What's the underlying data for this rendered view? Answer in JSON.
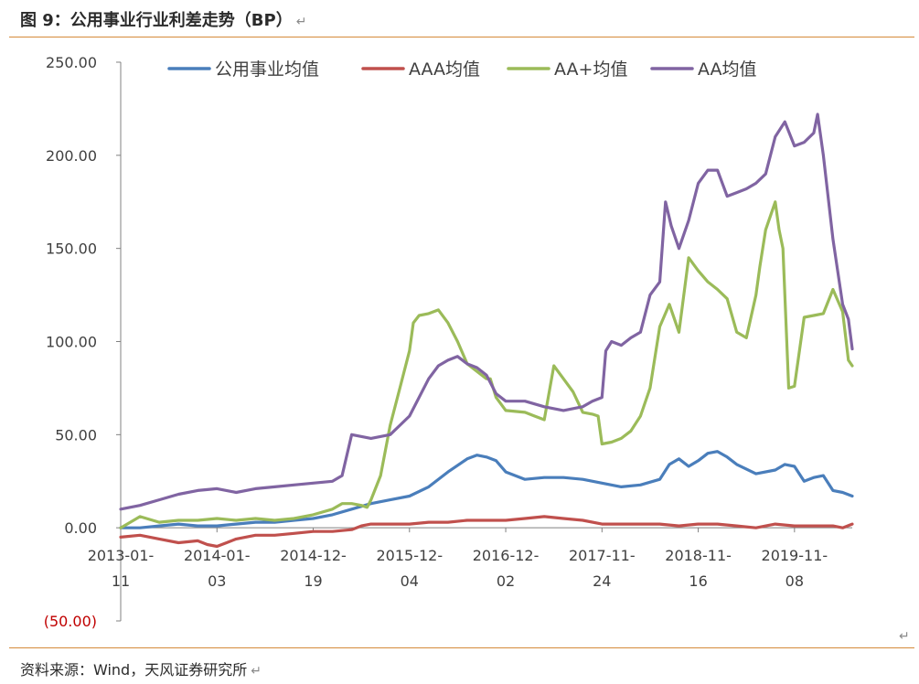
{
  "header": {
    "title": "图 9：公用事业行业利差走势（BP）",
    "title_mark": "↵"
  },
  "footer": {
    "source": "资料来源：Wind，天风证券研究所",
    "source_mark": "↵",
    "corner_mark": "↵"
  },
  "colors": {
    "axis": "#808080",
    "text": "#404040",
    "negative": "#c00000",
    "rule": "#d58a3a"
  },
  "chart_data": {
    "type": "line",
    "title": "公用事业行业利差走势（BP）",
    "ylim": [
      -50,
      250
    ],
    "yticks": [
      {
        "value": 250,
        "label": "250.00"
      },
      {
        "value": 200,
        "label": "200.00"
      },
      {
        "value": 150,
        "label": "150.00"
      },
      {
        "value": 100,
        "label": "100.00"
      },
      {
        "value": 50,
        "label": "50.00"
      },
      {
        "value": 0,
        "label": "0.00"
      },
      {
        "value": -50,
        "label": "(50.00)"
      }
    ],
    "xticks": [
      {
        "pos": 0,
        "line1": "2013-01-",
        "line2": "11"
      },
      {
        "pos": 50,
        "line1": "2014-01-",
        "line2": "03"
      },
      {
        "pos": 100,
        "line1": "2014-12-",
        "line2": "19"
      },
      {
        "pos": 150,
        "line1": "2015-12-",
        "line2": "04"
      },
      {
        "pos": 200,
        "line1": "2016-12-",
        "line2": "02"
      },
      {
        "pos": 250,
        "line1": "2017-11-",
        "line2": "24"
      },
      {
        "pos": 300,
        "line1": "2018-11-",
        "line2": "16"
      },
      {
        "pos": 350,
        "line1": "2019-11-",
        "line2": "08"
      }
    ],
    "x_max": 380,
    "series": [
      {
        "name": "公用事业均值",
        "color": "#4a7ebb",
        "points": [
          [
            0,
            0
          ],
          [
            10,
            0
          ],
          [
            20,
            1
          ],
          [
            30,
            2
          ],
          [
            40,
            1
          ],
          [
            50,
            1
          ],
          [
            60,
            2
          ],
          [
            70,
            3
          ],
          [
            80,
            3
          ],
          [
            90,
            4
          ],
          [
            100,
            5
          ],
          [
            110,
            7
          ],
          [
            120,
            10
          ],
          [
            130,
            13
          ],
          [
            140,
            15
          ],
          [
            150,
            17
          ],
          [
            160,
            22
          ],
          [
            170,
            30
          ],
          [
            180,
            37
          ],
          [
            185,
            39
          ],
          [
            190,
            38
          ],
          [
            195,
            36
          ],
          [
            200,
            30
          ],
          [
            210,
            26
          ],
          [
            220,
            27
          ],
          [
            230,
            27
          ],
          [
            240,
            26
          ],
          [
            250,
            24
          ],
          [
            260,
            22
          ],
          [
            270,
            23
          ],
          [
            280,
            26
          ],
          [
            285,
            34
          ],
          [
            290,
            37
          ],
          [
            295,
            33
          ],
          [
            300,
            36
          ],
          [
            305,
            40
          ],
          [
            310,
            41
          ],
          [
            315,
            38
          ],
          [
            320,
            34
          ],
          [
            330,
            29
          ],
          [
            340,
            31
          ],
          [
            345,
            34
          ],
          [
            350,
            33
          ],
          [
            355,
            25
          ],
          [
            360,
            27
          ],
          [
            365,
            28
          ],
          [
            370,
            20
          ],
          [
            375,
            19
          ],
          [
            380,
            17
          ]
        ]
      },
      {
        "name": "AAA均值",
        "color": "#c0504d",
        "points": [
          [
            0,
            -5
          ],
          [
            10,
            -4
          ],
          [
            20,
            -6
          ],
          [
            30,
            -8
          ],
          [
            40,
            -7
          ],
          [
            45,
            -9
          ],
          [
            50,
            -10
          ],
          [
            55,
            -8
          ],
          [
            60,
            -6
          ],
          [
            70,
            -4
          ],
          [
            80,
            -4
          ],
          [
            90,
            -3
          ],
          [
            100,
            -2
          ],
          [
            110,
            -2
          ],
          [
            120,
            -1
          ],
          [
            125,
            1
          ],
          [
            130,
            2
          ],
          [
            140,
            2
          ],
          [
            150,
            2
          ],
          [
            160,
            3
          ],
          [
            170,
            3
          ],
          [
            180,
            4
          ],
          [
            190,
            4
          ],
          [
            200,
            4
          ],
          [
            210,
            5
          ],
          [
            220,
            6
          ],
          [
            230,
            5
          ],
          [
            240,
            4
          ],
          [
            250,
            2
          ],
          [
            260,
            2
          ],
          [
            270,
            2
          ],
          [
            280,
            2
          ],
          [
            290,
            1
          ],
          [
            300,
            2
          ],
          [
            310,
            2
          ],
          [
            320,
            1
          ],
          [
            330,
            0
          ],
          [
            340,
            2
          ],
          [
            350,
            1
          ],
          [
            360,
            1
          ],
          [
            370,
            1
          ],
          [
            375,
            0
          ],
          [
            380,
            2
          ]
        ]
      },
      {
        "name": "AA+均值",
        "color": "#9bbb59",
        "points": [
          [
            0,
            0
          ],
          [
            5,
            3
          ],
          [
            10,
            6
          ],
          [
            20,
            3
          ],
          [
            30,
            4
          ],
          [
            40,
            4
          ],
          [
            50,
            5
          ],
          [
            60,
            4
          ],
          [
            70,
            5
          ],
          [
            80,
            4
          ],
          [
            90,
            5
          ],
          [
            100,
            7
          ],
          [
            110,
            10
          ],
          [
            115,
            13
          ],
          [
            120,
            13
          ],
          [
            125,
            12
          ],
          [
            128,
            11
          ],
          [
            130,
            15
          ],
          [
            135,
            28
          ],
          [
            140,
            55
          ],
          [
            145,
            75
          ],
          [
            150,
            95
          ],
          [
            152,
            110
          ],
          [
            155,
            114
          ],
          [
            160,
            115
          ],
          [
            165,
            117
          ],
          [
            170,
            110
          ],
          [
            175,
            100
          ],
          [
            180,
            88
          ],
          [
            185,
            84
          ],
          [
            190,
            80
          ],
          [
            192,
            80
          ],
          [
            195,
            70
          ],
          [
            200,
            63
          ],
          [
            210,
            62
          ],
          [
            215,
            60
          ],
          [
            220,
            58
          ],
          [
            225,
            87
          ],
          [
            230,
            80
          ],
          [
            235,
            73
          ],
          [
            240,
            62
          ],
          [
            245,
            61
          ],
          [
            248,
            60
          ],
          [
            250,
            45
          ],
          [
            255,
            46
          ],
          [
            260,
            48
          ],
          [
            265,
            52
          ],
          [
            270,
            60
          ],
          [
            275,
            75
          ],
          [
            280,
            108
          ],
          [
            285,
            120
          ],
          [
            290,
            105
          ],
          [
            295,
            145
          ],
          [
            300,
            138
          ],
          [
            305,
            132
          ],
          [
            310,
            128
          ],
          [
            315,
            123
          ],
          [
            320,
            105
          ],
          [
            325,
            102
          ],
          [
            330,
            125
          ],
          [
            332,
            140
          ],
          [
            335,
            160
          ],
          [
            340,
            175
          ],
          [
            342,
            160
          ],
          [
            344,
            150
          ],
          [
            347,
            75
          ],
          [
            350,
            76
          ],
          [
            355,
            113
          ],
          [
            360,
            114
          ],
          [
            365,
            115
          ],
          [
            370,
            128
          ],
          [
            375,
            116
          ],
          [
            378,
            90
          ],
          [
            380,
            87
          ]
        ]
      },
      {
        "name": "AA均值",
        "color": "#8064a2",
        "points": [
          [
            0,
            10
          ],
          [
            10,
            12
          ],
          [
            20,
            15
          ],
          [
            30,
            18
          ],
          [
            40,
            20
          ],
          [
            50,
            21
          ],
          [
            60,
            19
          ],
          [
            70,
            21
          ],
          [
            80,
            22
          ],
          [
            90,
            23
          ],
          [
            100,
            24
          ],
          [
            110,
            25
          ],
          [
            115,
            28
          ],
          [
            120,
            50
          ],
          [
            130,
            48
          ],
          [
            140,
            50
          ],
          [
            145,
            55
          ],
          [
            150,
            60
          ],
          [
            160,
            80
          ],
          [
            165,
            87
          ],
          [
            170,
            90
          ],
          [
            175,
            92
          ],
          [
            180,
            88
          ],
          [
            185,
            86
          ],
          [
            190,
            82
          ],
          [
            195,
            72
          ],
          [
            200,
            68
          ],
          [
            210,
            68
          ],
          [
            220,
            65
          ],
          [
            230,
            63
          ],
          [
            240,
            65
          ],
          [
            245,
            68
          ],
          [
            250,
            70
          ],
          [
            252,
            95
          ],
          [
            255,
            100
          ],
          [
            260,
            98
          ],
          [
            265,
            102
          ],
          [
            270,
            105
          ],
          [
            275,
            125
          ],
          [
            280,
            132
          ],
          [
            283,
            175
          ],
          [
            286,
            162
          ],
          [
            290,
            150
          ],
          [
            295,
            165
          ],
          [
            300,
            185
          ],
          [
            305,
            192
          ],
          [
            310,
            192
          ],
          [
            315,
            178
          ],
          [
            320,
            180
          ],
          [
            325,
            182
          ],
          [
            330,
            185
          ],
          [
            335,
            190
          ],
          [
            340,
            210
          ],
          [
            345,
            218
          ],
          [
            350,
            205
          ],
          [
            355,
            207
          ],
          [
            360,
            212
          ],
          [
            362,
            222
          ],
          [
            365,
            200
          ],
          [
            370,
            155
          ],
          [
            375,
            120
          ],
          [
            378,
            112
          ],
          [
            380,
            96
          ]
        ]
      }
    ]
  }
}
